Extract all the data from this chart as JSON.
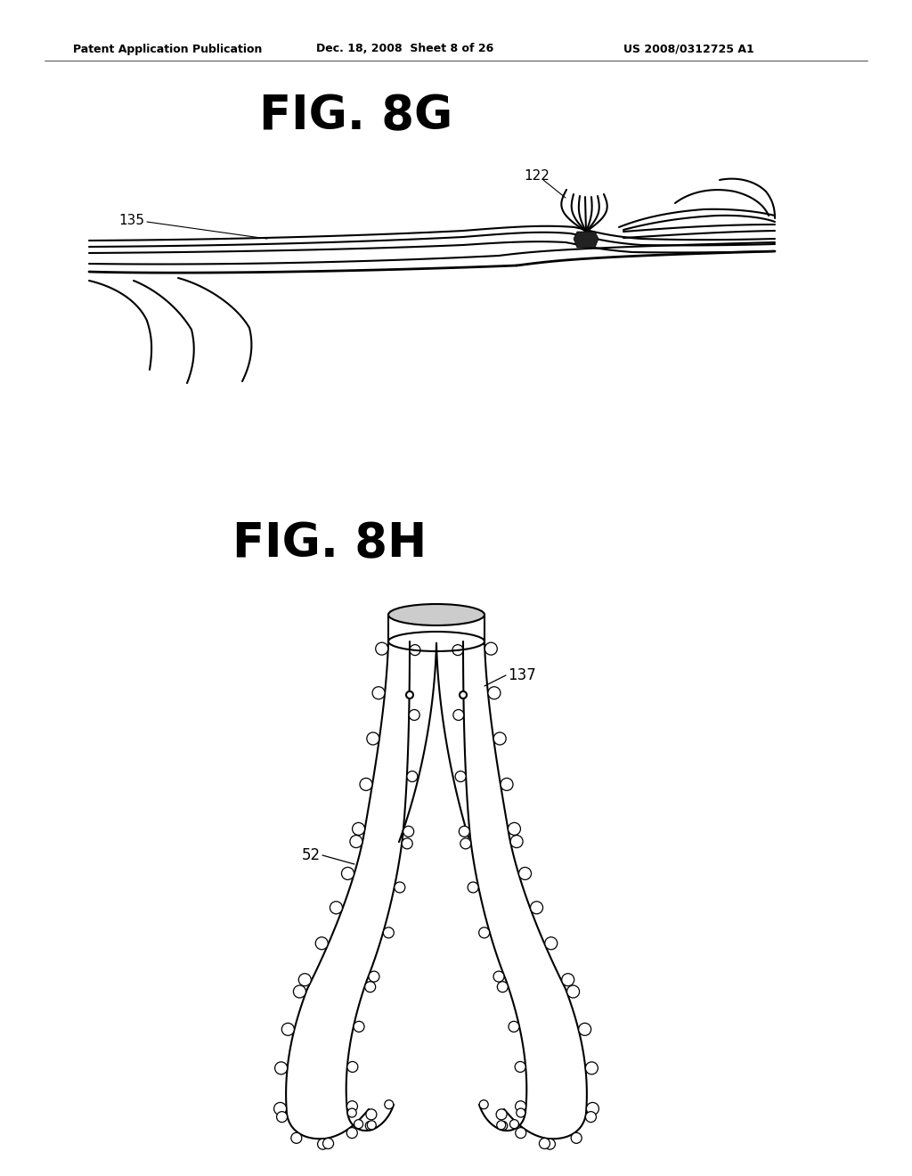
{
  "bg_color": "#ffffff",
  "header_text": "Patent Application Publication",
  "header_date": "Dec. 18, 2008  Sheet 8 of 26",
  "header_patent": "US 2008/0312725 A1",
  "fig_8g_title": "FIG. 8G",
  "fig_8h_title": "FIG. 8H",
  "label_122": "122",
  "label_135": "135",
  "label_137": "137",
  "label_52": "52",
  "line_color": "#000000"
}
